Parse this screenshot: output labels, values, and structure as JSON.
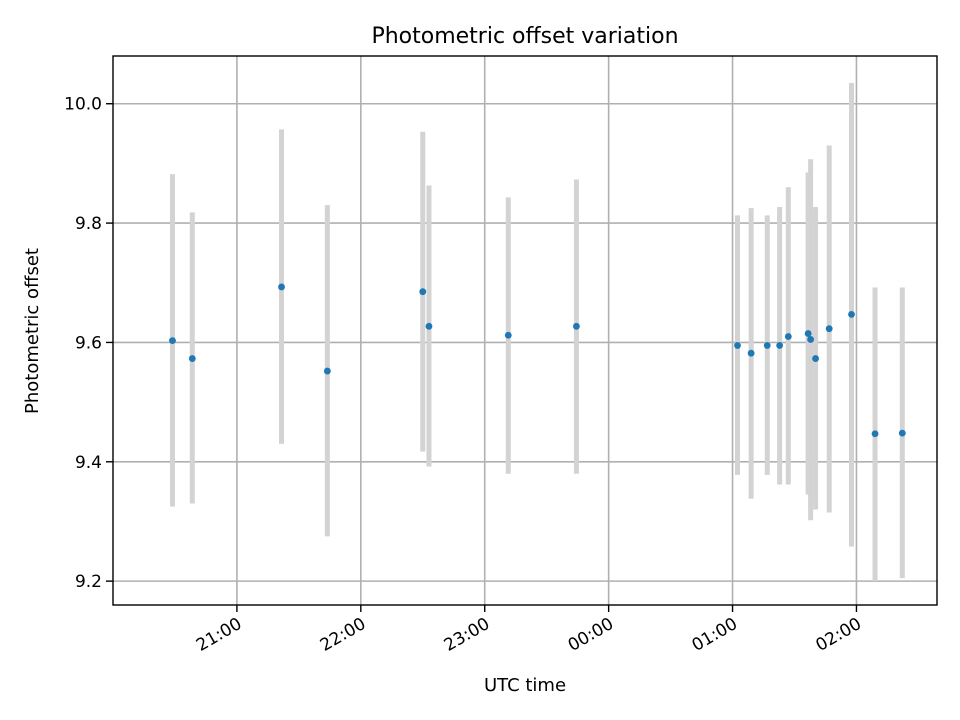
{
  "chart_data": {
    "type": "scatter",
    "title": "Photometric offset variation",
    "xlabel": "UTC time",
    "ylabel": "Photometric offset",
    "x_unit": "hours UTC (values above 24 fall after midnight)",
    "xlim": [
      20.0,
      26.65
    ],
    "ylim": [
      9.16,
      10.08
    ],
    "grid": true,
    "x_ticks": [
      {
        "value": 21,
        "label": "21:00"
      },
      {
        "value": 22,
        "label": "22:00"
      },
      {
        "value": 23,
        "label": "23:00"
      },
      {
        "value": 24,
        "label": "00:00"
      },
      {
        "value": 25,
        "label": "01:00"
      },
      {
        "value": 26,
        "label": "02:00"
      }
    ],
    "y_ticks": [
      {
        "value": 9.2,
        "label": "9.2"
      },
      {
        "value": 9.4,
        "label": "9.4"
      },
      {
        "value": 9.6,
        "label": "9.6"
      },
      {
        "value": 9.8,
        "label": "9.8"
      },
      {
        "value": 10.0,
        "label": "10.0"
      }
    ],
    "colors": {
      "point": "#1f77b4",
      "errorbar": "#d3d3d3"
    },
    "points": [
      {
        "x": 20.48,
        "y": 9.603,
        "lo": 9.325,
        "hi": 9.882
      },
      {
        "x": 20.64,
        "y": 9.573,
        "lo": 9.33,
        "hi": 9.818
      },
      {
        "x": 21.36,
        "y": 9.693,
        "lo": 9.43,
        "hi": 9.957
      },
      {
        "x": 21.73,
        "y": 9.552,
        "lo": 9.275,
        "hi": 9.83
      },
      {
        "x": 22.5,
        "y": 9.685,
        "lo": 9.417,
        "hi": 9.953
      },
      {
        "x": 22.55,
        "y": 9.627,
        "lo": 9.392,
        "hi": 9.863
      },
      {
        "x": 23.19,
        "y": 9.612,
        "lo": 9.38,
        "hi": 9.843
      },
      {
        "x": 23.74,
        "y": 9.627,
        "lo": 9.38,
        "hi": 9.873
      },
      {
        "x": 25.04,
        "y": 9.595,
        "lo": 9.378,
        "hi": 9.813
      },
      {
        "x": 25.15,
        "y": 9.582,
        "lo": 9.338,
        "hi": 9.825
      },
      {
        "x": 25.28,
        "y": 9.595,
        "lo": 9.378,
        "hi": 9.813
      },
      {
        "x": 25.38,
        "y": 9.595,
        "lo": 9.362,
        "hi": 9.827
      },
      {
        "x": 25.45,
        "y": 9.61,
        "lo": 9.362,
        "hi": 9.86
      },
      {
        "x": 25.61,
        "y": 9.615,
        "lo": 9.345,
        "hi": 9.885
      },
      {
        "x": 25.63,
        "y": 9.605,
        "lo": 9.302,
        "hi": 9.907
      },
      {
        "x": 25.67,
        "y": 9.573,
        "lo": 9.32,
        "hi": 9.827
      },
      {
        "x": 25.78,
        "y": 9.623,
        "lo": 9.315,
        "hi": 9.93
      },
      {
        "x": 25.96,
        "y": 9.647,
        "lo": 9.258,
        "hi": 10.035
      },
      {
        "x": 26.15,
        "y": 9.447,
        "lo": 9.2,
        "hi": 9.692
      },
      {
        "x": 26.37,
        "y": 9.448,
        "lo": 9.205,
        "hi": 9.692
      }
    ]
  }
}
